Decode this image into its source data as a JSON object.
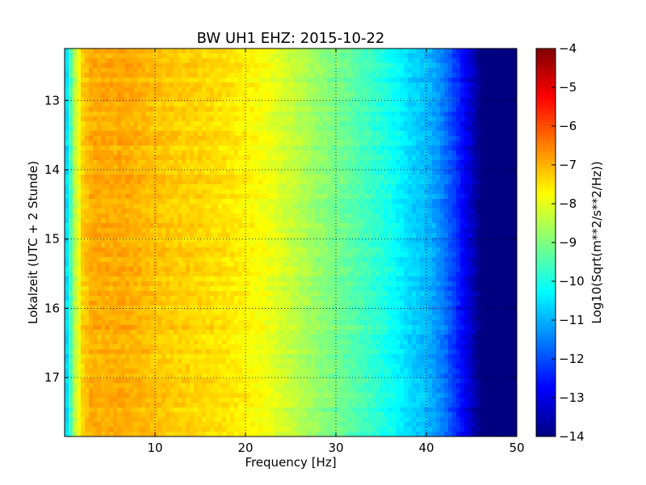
{
  "chart_data": {
    "type": "heatmap",
    "title": "BW UH1 EHZ: 2015-10-22",
    "xlabel": "Frequency [Hz]",
    "ylabel": "Lokalzeit (UTC + 2 Stunde)",
    "xlim": [
      0,
      50
    ],
    "ylim": [
      12.25,
      17.85
    ],
    "y_inverted": true,
    "x_ticks": [
      10,
      20,
      30,
      40,
      50
    ],
    "y_ticks": [
      13,
      14,
      15,
      16,
      17
    ],
    "grid": true,
    "colormap": "jet",
    "colorbar": {
      "label": "Log10(Sqrt(m**2/s**2/Hz))",
      "range": [
        -14,
        -4
      ],
      "ticks": [
        -4,
        -5,
        -6,
        -7,
        -8,
        -9,
        -10,
        -11,
        -12,
        -13,
        -14
      ]
    },
    "profile": {
      "frequency_hz": [
        0,
        0.5,
        1,
        2,
        3,
        4,
        6,
        8,
        10,
        12,
        15,
        18,
        20,
        22,
        25,
        28,
        30,
        32,
        35,
        37,
        38,
        40,
        41,
        42,
        43,
        44,
        45,
        46,
        50
      ],
      "level": [
        -11,
        -10,
        -8.6,
        -7.3,
        -6.9,
        -6.95,
        -6.9,
        -7,
        -7.15,
        -7.25,
        -7.35,
        -7.5,
        -7.65,
        -7.85,
        -8.3,
        -8.8,
        -9.1,
        -9.4,
        -9.9,
        -10.3,
        -10.6,
        -10.9,
        -11.2,
        -11.6,
        -12.1,
        -12.7,
        -13.3,
        -14,
        -14
      ]
    }
  }
}
